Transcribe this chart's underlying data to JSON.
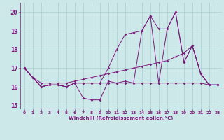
{
  "xlabel": "Windchill (Refroidissement éolien,°C)",
  "background_color": "#cce8e8",
  "grid_color": "#aacfcf",
  "line_color": "#7b1a7b",
  "xlim": [
    -0.5,
    23.5
  ],
  "ylim": [
    14.8,
    20.5
  ],
  "yticks": [
    15,
    16,
    17,
    18,
    19,
    20
  ],
  "xticks": [
    0,
    1,
    2,
    3,
    4,
    5,
    6,
    7,
    8,
    9,
    10,
    11,
    12,
    13,
    14,
    15,
    16,
    17,
    18,
    19,
    20,
    21,
    22,
    23
  ],
  "xtick_labels": [
    "0",
    "1",
    "2",
    "3",
    "4",
    "5",
    "6",
    "7",
    "8",
    "9",
    "10",
    "11",
    "12",
    "13",
    "14",
    "15",
    "16",
    "17",
    "18",
    "19",
    "20",
    "21",
    "22",
    "23"
  ],
  "series": [
    [
      17.0,
      16.5,
      16.0,
      16.1,
      16.1,
      16.0,
      16.2,
      15.4,
      15.3,
      15.3,
      16.3,
      16.2,
      16.3,
      16.2,
      19.0,
      19.8,
      16.2,
      19.1,
      20.0,
      17.3,
      18.2,
      16.7,
      16.1,
      16.1
    ],
    [
      17.0,
      16.5,
      16.0,
      16.1,
      16.1,
      16.0,
      16.2,
      16.2,
      16.2,
      16.2,
      17.0,
      18.0,
      18.8,
      18.9,
      19.0,
      19.8,
      19.1,
      19.1,
      20.0,
      17.3,
      18.2,
      16.7,
      16.1,
      16.1
    ],
    [
      17.0,
      16.5,
      16.0,
      16.1,
      16.1,
      16.0,
      16.2,
      16.2,
      16.2,
      16.2,
      16.2,
      16.2,
      16.2,
      16.2,
      16.2,
      16.2,
      16.2,
      16.2,
      16.2,
      16.2,
      16.2,
      16.2,
      16.1,
      16.1
    ],
    [
      17.0,
      16.5,
      16.2,
      16.2,
      16.2,
      16.2,
      16.3,
      16.4,
      16.5,
      16.6,
      16.7,
      16.8,
      16.9,
      17.0,
      17.1,
      17.2,
      17.3,
      17.4,
      17.6,
      17.8,
      18.2,
      16.7,
      16.1,
      16.1
    ]
  ]
}
